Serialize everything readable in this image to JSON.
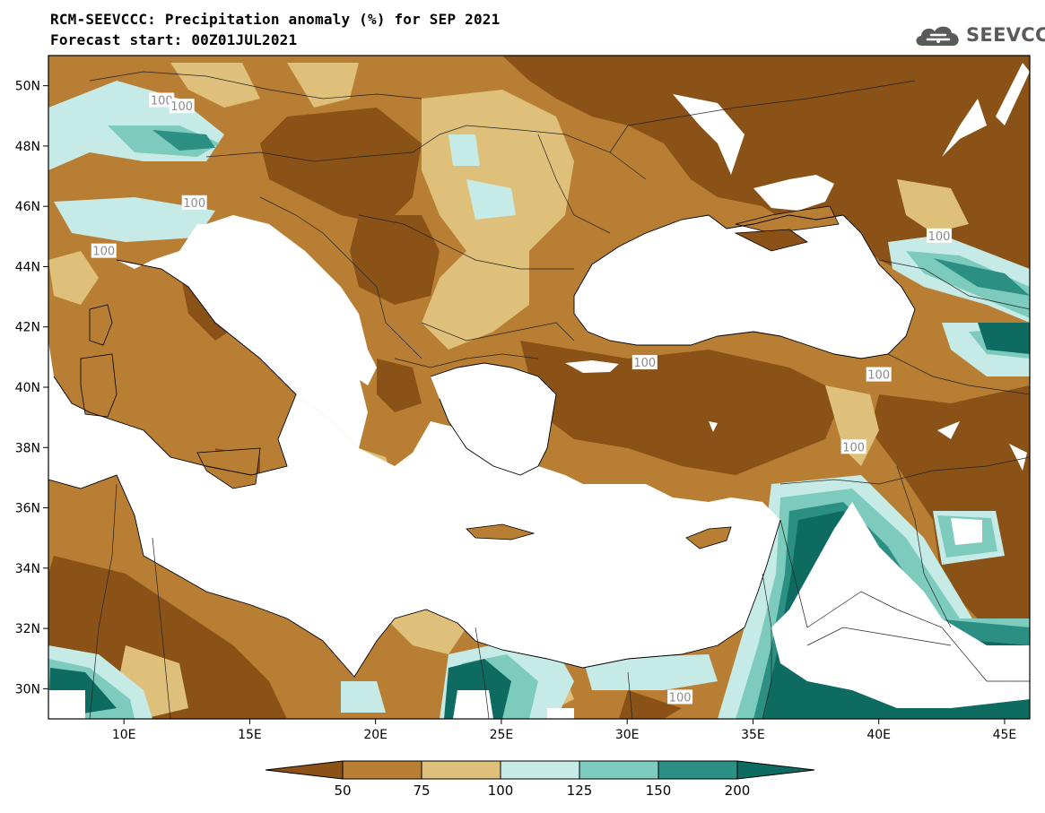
{
  "title": "RCM-SEEVCCC: Precipitation anomaly (%) for SEP 2021",
  "subtitle": "Forecast start: 00Z01JUL2021",
  "logo": {
    "text": "SEEVCCC",
    "icon": "cloud-icon",
    "color": "#5a5a5a"
  },
  "map": {
    "extent": {
      "lon": [
        7,
        46
      ],
      "lat": [
        29,
        51
      ]
    },
    "lat_ticks": [
      {
        "value": 30,
        "label": "30N"
      },
      {
        "value": 32,
        "label": "32N"
      },
      {
        "value": 34,
        "label": "34N"
      },
      {
        "value": 36,
        "label": "36N"
      },
      {
        "value": 38,
        "label": "38N"
      },
      {
        "value": 40,
        "label": "40N"
      },
      {
        "value": 42,
        "label": "42N"
      },
      {
        "value": 44,
        "label": "44N"
      },
      {
        "value": 46,
        "label": "46N"
      },
      {
        "value": 48,
        "label": "48N"
      },
      {
        "value": 50,
        "label": "50N"
      }
    ],
    "lon_ticks": [
      {
        "value": 10,
        "label": "10E"
      },
      {
        "value": 15,
        "label": "15E"
      },
      {
        "value": 20,
        "label": "20E"
      },
      {
        "value": 25,
        "label": "25E"
      },
      {
        "value": 30,
        "label": "30E"
      },
      {
        "value": 35,
        "label": "35E"
      },
      {
        "value": 40,
        "label": "40E"
      },
      {
        "value": 45,
        "label": "45E"
      }
    ],
    "contour_labels": [
      {
        "text": "100",
        "lon": 11.5,
        "lat": 49.5
      },
      {
        "text": "100",
        "lon": 12.3,
        "lat": 49.3
      },
      {
        "text": "100",
        "lon": 12.8,
        "lat": 46.1
      },
      {
        "text": "100",
        "lon": 9.2,
        "lat": 44.5
      },
      {
        "text": "100",
        "lon": 30.7,
        "lat": 40.8
      },
      {
        "text": "100",
        "lon": 40.0,
        "lat": 40.4
      },
      {
        "text": "100",
        "lon": 42.4,
        "lat": 45.0
      },
      {
        "text": "100",
        "lon": 39.0,
        "lat": 38.0
      },
      {
        "text": "100",
        "lon": 32.1,
        "lat": 29.7
      }
    ]
  },
  "colorbar": {
    "levels": [
      "50",
      "75",
      "100",
      "125",
      "150",
      "200"
    ],
    "colors": [
      "#8a5216",
      "#b77e34",
      "#dfc07b",
      "#c6ebe6",
      "#7ccbbc",
      "#2c8f84",
      "#0d6b62"
    ]
  }
}
